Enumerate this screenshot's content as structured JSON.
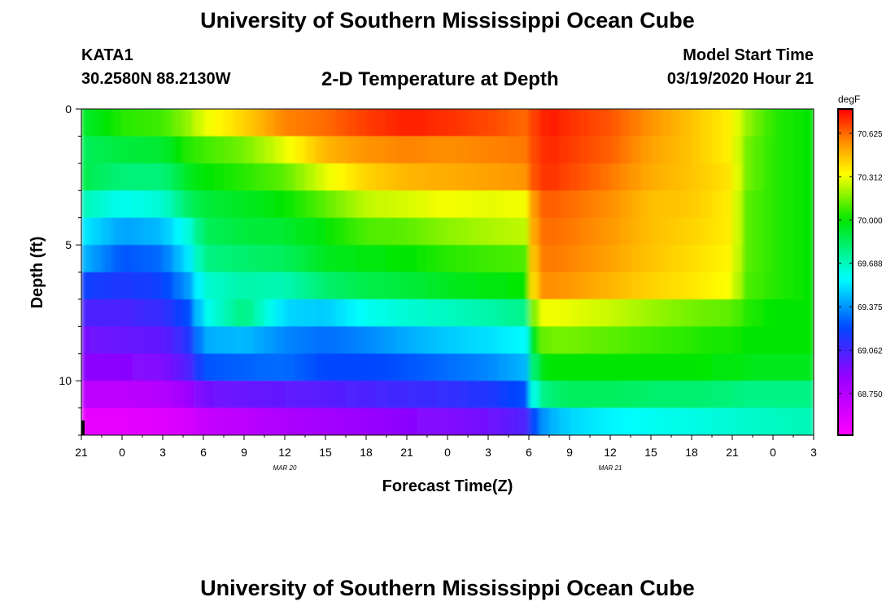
{
  "header": {
    "title": "University of Southern Mississippi Ocean Cube",
    "station": "KATA1",
    "coordinates": "30.2580N 88.2130W",
    "subtitle": "2-D Temperature at Depth",
    "model_start_label": "Model Start Time",
    "model_start_value": "03/19/2020 Hour 21"
  },
  "footer": {
    "title": "University of Southern Mississippi Ocean Cube"
  },
  "chart_data": {
    "type": "heatmap",
    "title": "2-D Temperature at Depth",
    "xlabel": "Forecast Time(Z)",
    "ylabel": "Depth (ft)",
    "x_ticks": [
      "21",
      "0",
      "3",
      "6",
      "9",
      "12",
      "15",
      "18",
      "21",
      "0",
      "3",
      "6",
      "9",
      "12",
      "15",
      "18",
      "21",
      "0",
      "3"
    ],
    "date_labels": [
      {
        "text": "MAR 20",
        "at_tick": 5
      },
      {
        "text": "MAR 21",
        "at_tick": 13
      }
    ],
    "x_range_hours": [
      0,
      54
    ],
    "y_ticks": [
      "0",
      "5",
      "10"
    ],
    "y_range_ft": [
      0,
      12
    ],
    "colorbar": {
      "units": "degF",
      "min": 68.45,
      "max": 70.8,
      "tick_values": [
        70.625,
        70.312,
        70.0,
        69.688,
        69.375,
        69.062,
        68.75
      ],
      "tick_labels": [
        "70.625",
        "70.312",
        "70.000",
        "69.688",
        "69.375",
        "69.062",
        "68.750"
      ]
    },
    "time_hours": [
      0,
      3,
      6,
      8,
      9,
      12,
      15,
      18,
      21,
      24,
      27,
      30,
      33,
      33.5,
      34.5,
      36,
      39,
      42,
      45,
      48,
      49,
      51,
      54
    ],
    "depth_ft": [
      0.5,
      1.5,
      2.5,
      3.5,
      4.5,
      5.5,
      6.5,
      7.5,
      8.5,
      9.5,
      10.5,
      11.5
    ],
    "temperature_degF": [
      [
        69.92,
        70.05,
        70.08,
        70.2,
        70.3,
        70.42,
        70.58,
        70.62,
        70.7,
        70.75,
        70.72,
        70.68,
        70.62,
        70.72,
        70.76,
        70.72,
        70.66,
        70.55,
        70.45,
        70.35,
        70.2,
        70.05,
        70.0
      ],
      [
        69.85,
        69.9,
        69.92,
        70.05,
        70.08,
        70.15,
        70.3,
        70.48,
        70.55,
        70.58,
        70.56,
        70.58,
        70.6,
        70.7,
        70.74,
        70.7,
        70.64,
        70.52,
        70.45,
        70.35,
        70.15,
        70.05,
        70.0
      ],
      [
        69.88,
        69.8,
        69.8,
        69.95,
        70.0,
        70.05,
        70.12,
        70.3,
        70.42,
        70.48,
        70.5,
        70.52,
        70.55,
        70.7,
        70.72,
        70.68,
        70.6,
        70.5,
        70.45,
        70.38,
        70.15,
        70.05,
        70.0
      ],
      [
        69.7,
        69.6,
        69.65,
        69.85,
        69.9,
        69.95,
        70.0,
        70.12,
        70.25,
        70.28,
        70.32,
        70.3,
        70.32,
        70.62,
        70.65,
        70.62,
        70.56,
        70.46,
        70.44,
        70.36,
        70.12,
        70.05,
        70.0
      ],
      [
        69.55,
        69.4,
        69.45,
        69.65,
        69.85,
        69.9,
        69.92,
        70.0,
        70.1,
        70.12,
        70.18,
        70.22,
        70.25,
        70.6,
        70.62,
        70.6,
        70.54,
        70.46,
        70.42,
        70.36,
        70.12,
        70.05,
        70.0
      ],
      [
        69.45,
        69.25,
        69.3,
        69.55,
        69.78,
        69.82,
        69.85,
        69.95,
        69.98,
        70.0,
        70.05,
        70.08,
        70.1,
        70.58,
        70.6,
        70.58,
        70.52,
        70.45,
        70.4,
        70.34,
        70.12,
        70.05,
        70.0
      ],
      [
        69.2,
        69.15,
        69.2,
        69.4,
        69.65,
        69.72,
        69.7,
        69.82,
        69.88,
        69.9,
        69.95,
        69.98,
        70.0,
        70.55,
        70.56,
        70.54,
        70.48,
        70.42,
        70.38,
        70.32,
        70.1,
        70.05,
        70.0
      ],
      [
        69.05,
        69.05,
        69.1,
        69.25,
        69.58,
        69.8,
        69.5,
        69.48,
        69.6,
        69.65,
        69.68,
        69.72,
        69.78,
        70.3,
        70.32,
        70.3,
        70.26,
        70.2,
        70.15,
        70.12,
        70.05,
        70.0,
        70.0
      ],
      [
        68.95,
        68.98,
        69.0,
        69.15,
        69.42,
        69.45,
        69.35,
        69.3,
        69.35,
        69.42,
        69.48,
        69.52,
        69.58,
        70.1,
        70.15,
        70.15,
        70.12,
        70.08,
        70.05,
        70.02,
        70.0,
        70.0,
        70.0
      ],
      [
        68.9,
        68.9,
        68.92,
        69.05,
        69.25,
        69.28,
        69.3,
        69.22,
        69.22,
        69.25,
        69.3,
        69.35,
        69.45,
        69.95,
        70.0,
        70.0,
        70.0,
        70.0,
        70.0,
        69.98,
        69.96,
        69.95,
        69.95
      ],
      [
        68.72,
        68.72,
        68.75,
        68.85,
        68.95,
        68.98,
        69.0,
        69.02,
        69.05,
        69.08,
        69.1,
        69.15,
        69.25,
        69.75,
        69.8,
        69.85,
        69.85,
        69.82,
        69.82,
        69.8,
        69.78,
        69.78,
        69.78
      ],
      [
        68.55,
        68.55,
        68.58,
        68.62,
        68.68,
        68.72,
        68.78,
        68.82,
        68.86,
        68.9,
        68.92,
        68.96,
        69.05,
        69.3,
        69.42,
        69.5,
        69.56,
        69.6,
        69.62,
        69.65,
        69.66,
        69.68,
        69.7
      ]
    ]
  }
}
